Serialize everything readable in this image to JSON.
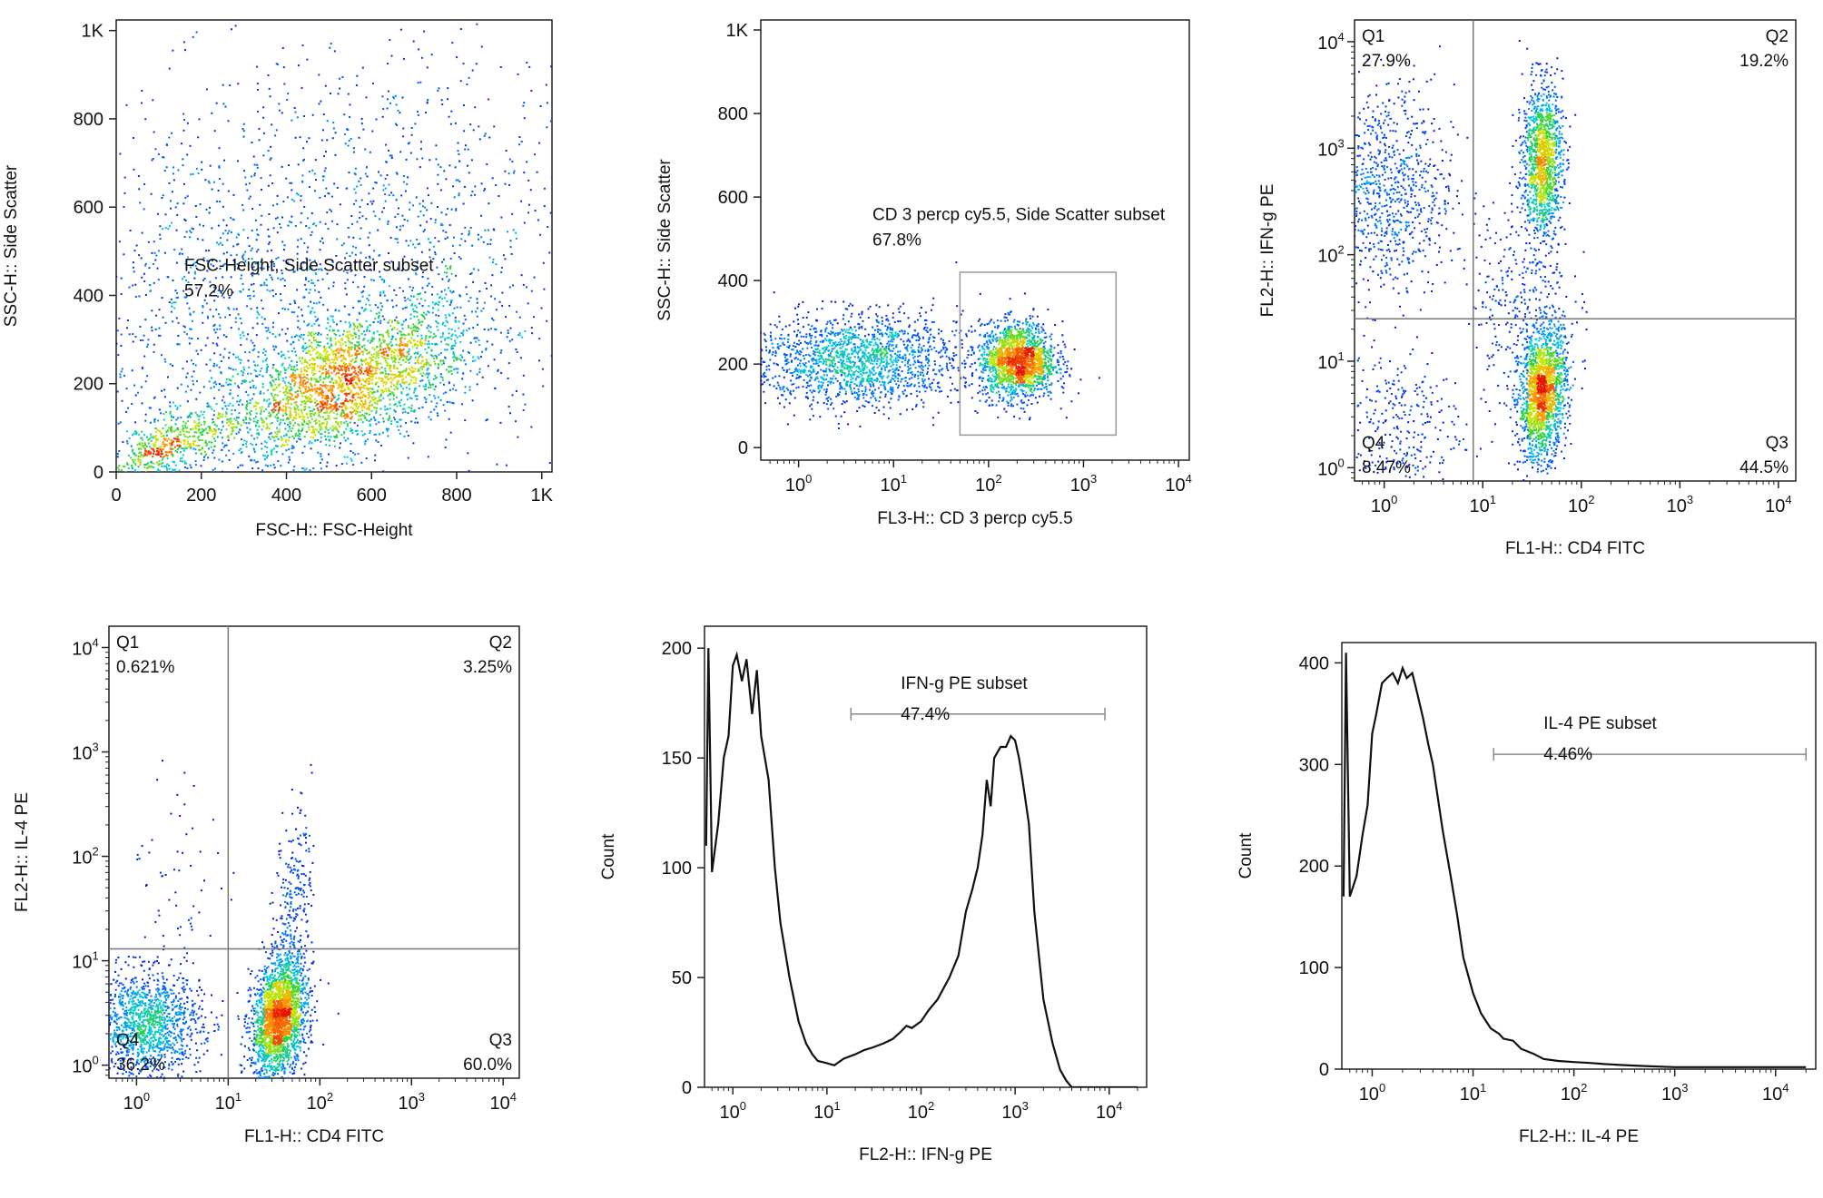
{
  "panels": [
    {
      "id": "fsc-ssc",
      "type": "scatter",
      "x_scale": "linear",
      "y_scale": "linear",
      "xlim": [
        0,
        1024
      ],
      "ylim": [
        0,
        1024
      ],
      "x_ticks": [
        {
          "v": 0,
          "t": "0"
        },
        {
          "v": 200,
          "t": "200"
        },
        {
          "v": 400,
          "t": "400"
        },
        {
          "v": 600,
          "t": "600"
        },
        {
          "v": 800,
          "t": "800"
        },
        {
          "v": 1000,
          "t": "1K"
        }
      ],
      "y_ticks": [
        {
          "v": 0,
          "t": "0"
        },
        {
          "v": 200,
          "t": "200"
        },
        {
          "v": 400,
          "t": "400"
        },
        {
          "v": 600,
          "t": "600"
        },
        {
          "v": 800,
          "t": "800"
        },
        {
          "v": 1000,
          "t": "1K"
        }
      ],
      "xlabel": "FSC-H:: FSC-Height",
      "ylabel": "SSC-H:: Side Scatter",
      "populations": [
        {
          "cx": 530,
          "cy": 200,
          "sx": 150,
          "sy": 90,
          "rho": 0.55,
          "n": 2600
        },
        {
          "cx": 250,
          "cy": 380,
          "sx": 180,
          "sy": 240,
          "rho": 0.1,
          "n": 1100
        },
        {
          "cx": 700,
          "cy": 520,
          "sx": 200,
          "sy": 230,
          "rho": 0.0,
          "n": 900
        },
        {
          "cx": 120,
          "cy": 60,
          "sx": 70,
          "sy": 40,
          "rho": 0.6,
          "n": 500
        }
      ],
      "gate_label": {
        "name": "FSC-Height, Side Scatter subset",
        "value": "57.2%",
        "x": 160,
        "y": 455
      }
    },
    {
      "id": "cd3-ssc",
      "type": "scatter",
      "x_scale": "log",
      "y_scale": "linear",
      "xlim": [
        0.4,
        13000
      ],
      "ylim": [
        -30,
        1024
      ],
      "x_ticks": [
        {
          "v": 1,
          "e": "0"
        },
        {
          "v": 10,
          "e": "1"
        },
        {
          "v": 100,
          "e": "2"
        },
        {
          "v": 1000,
          "e": "3"
        },
        {
          "v": 10000,
          "e": "4"
        }
      ],
      "y_ticks": [
        {
          "v": 0,
          "t": "0"
        },
        {
          "v": 200,
          "t": "200"
        },
        {
          "v": 400,
          "t": "400"
        },
        {
          "v": 600,
          "t": "600"
        },
        {
          "v": 800,
          "t": "800"
        },
        {
          "v": 1000,
          "t": "1K"
        }
      ],
      "xlabel": "FL3-H:: CD 3 percp cy5.5",
      "ylabel": "SSC-H:: Side Scatter",
      "populations": [
        {
          "lcx": 0.6,
          "cy": 210,
          "lsx": 0.55,
          "sy": 55,
          "rho": 0,
          "n": 1700
        },
        {
          "lcx": 2.3,
          "cy": 210,
          "lsx": 0.2,
          "sy": 45,
          "rho": 0,
          "n": 1800
        }
      ],
      "gate_box": {
        "x0": 50,
        "x1": 2200,
        "y0": 30,
        "y1": 420
      },
      "gate_label": {
        "name": "CD 3 percp cy5.5, Side Scatter subset",
        "value": "67.8%",
        "x": 6,
        "y": 545
      }
    },
    {
      "id": "cd4-ifng",
      "type": "quadrant",
      "x_scale": "log",
      "y_scale": "log",
      "xlim": [
        0.5,
        15000
      ],
      "ylim": [
        0.75,
        16000
      ],
      "x_ticks": [
        {
          "v": 1,
          "e": "0"
        },
        {
          "v": 10,
          "e": "1"
        },
        {
          "v": 100,
          "e": "2"
        },
        {
          "v": 1000,
          "e": "3"
        },
        {
          "v": 10000,
          "e": "4"
        }
      ],
      "y_ticks": [
        {
          "v": 1,
          "e": "0"
        },
        {
          "v": 10,
          "e": "1"
        },
        {
          "v": 100,
          "e": "2"
        },
        {
          "v": 1000,
          "e": "3"
        },
        {
          "v": 10000,
          "e": "4"
        }
      ],
      "xlabel": "FL1-H:: CD4 FITC",
      "ylabel": "FL2-H:: IFN-g PE",
      "divider": {
        "x": 8,
        "y": 25
      },
      "quadrants": [
        {
          "name": "Q1",
          "value": "27.9%",
          "pos": "top-left"
        },
        {
          "name": "Q2",
          "value": "19.2%",
          "pos": "top-right"
        },
        {
          "name": "Q3",
          "value": "44.5%",
          "pos": "bottom-right"
        },
        {
          "name": "Q4",
          "value": "8.47%",
          "pos": "bottom-left"
        }
      ],
      "populations": [
        {
          "lcx": 1.6,
          "lcy": 0.7,
          "lsx": 0.12,
          "lsy": 0.3,
          "rho": 0.2,
          "n": 1700
        },
        {
          "lcx": 1.6,
          "lcy": 2.9,
          "lsx": 0.1,
          "lsy": 0.35,
          "rho": 0,
          "n": 1300
        },
        {
          "lcx": 0.0,
          "lcy": 2.6,
          "lsx": 0.35,
          "lsy": 0.5,
          "rho": 0,
          "n": 900
        },
        {
          "lcx": 0.1,
          "lcy": 0.4,
          "lsx": 0.35,
          "lsy": 0.35,
          "rho": 0,
          "n": 300
        },
        {
          "lcx": 1.4,
          "lcy": 1.6,
          "lsx": 0.25,
          "lsy": 0.5,
          "rho": 0,
          "n": 350
        }
      ]
    },
    {
      "id": "cd4-il4",
      "type": "quadrant",
      "x_scale": "log",
      "y_scale": "log",
      "xlim": [
        0.5,
        15000
      ],
      "ylim": [
        0.75,
        16000
      ],
      "x_ticks": [
        {
          "v": 1,
          "e": "0"
        },
        {
          "v": 10,
          "e": "1"
        },
        {
          "v": 100,
          "e": "2"
        },
        {
          "v": 1000,
          "e": "3"
        },
        {
          "v": 10000,
          "e": "4"
        }
      ],
      "y_ticks": [
        {
          "v": 1,
          "e": "0"
        },
        {
          "v": 10,
          "e": "1"
        },
        {
          "v": 100,
          "e": "2"
        },
        {
          "v": 1000,
          "e": "3"
        },
        {
          "v": 10000,
          "e": "4"
        }
      ],
      "xlabel": "FL1-H:: CD4 FITC",
      "ylabel": "FL2-H:: IL-4 PE",
      "divider": {
        "x": 10,
        "y": 13
      },
      "quadrants": [
        {
          "name": "Q1",
          "value": "0.621%",
          "pos": "top-left"
        },
        {
          "name": "Q2",
          "value": "3.25%",
          "pos": "top-right"
        },
        {
          "name": "Q3",
          "value": "60.0%",
          "pos": "bottom-right"
        },
        {
          "name": "Q4",
          "value": "36.2%",
          "pos": "bottom-left"
        }
      ],
      "populations": [
        {
          "lcx": 1.55,
          "lcy": 0.45,
          "lsx": 0.15,
          "lsy": 0.28,
          "rho": 0.25,
          "n": 2200
        },
        {
          "lcx": 0.1,
          "lcy": 0.4,
          "lsx": 0.3,
          "lsy": 0.25,
          "rho": 0,
          "n": 1300
        },
        {
          "lcx": 1.7,
          "lcy": 1.6,
          "lsx": 0.1,
          "lsy": 0.45,
          "rho": 0.3,
          "n": 250
        },
        {
          "lcx": 0.5,
          "lcy": 1.8,
          "lsx": 0.3,
          "lsy": 0.5,
          "rho": 0,
          "n": 60
        }
      ]
    },
    {
      "id": "ifng-hist",
      "type": "line",
      "x_scale": "log",
      "y_scale": "linear",
      "xlim": [
        0.5,
        25000
      ],
      "ylim": [
        0,
        210
      ],
      "x_ticks": [
        {
          "v": 1,
          "e": "0"
        },
        {
          "v": 10,
          "e": "1"
        },
        {
          "v": 100,
          "e": "2"
        },
        {
          "v": 1000,
          "e": "3"
        },
        {
          "v": 10000,
          "e": "4"
        }
      ],
      "y_ticks": [
        {
          "v": 0,
          "t": "0"
        },
        {
          "v": 50,
          "t": "50"
        },
        {
          "v": 100,
          "t": "100"
        },
        {
          "v": 150,
          "t": "150"
        },
        {
          "v": 200,
          "t": "200"
        }
      ],
      "xlabel": "FL2-H:: IFN-g PE",
      "ylabel": "Count",
      "x": [
        0.52,
        0.55,
        0.6,
        0.7,
        0.8,
        0.9,
        1.0,
        1.1,
        1.25,
        1.4,
        1.6,
        1.8,
        2.0,
        2.4,
        2.8,
        3.2,
        4,
        5,
        6,
        7,
        8,
        10,
        12,
        15,
        20,
        25,
        30,
        40,
        50,
        60,
        70,
        80,
        100,
        120,
        150,
        200,
        250,
        300,
        350,
        400,
        450,
        500,
        550,
        600,
        700,
        800,
        900,
        1000,
        1100,
        1200,
        1400,
        1600,
        2000,
        2500,
        3000,
        3500,
        4000,
        5000,
        6000,
        8000,
        10000,
        15000,
        20000
      ],
      "y": [
        110,
        200,
        98,
        120,
        150,
        160,
        192,
        197,
        185,
        195,
        170,
        190,
        160,
        140,
        100,
        75,
        50,
        30,
        20,
        15,
        12,
        11,
        10,
        13,
        15,
        17,
        18,
        20,
        22,
        25,
        28,
        27,
        30,
        35,
        40,
        50,
        60,
        80,
        90,
        100,
        115,
        140,
        128,
        150,
        155,
        155,
        160,
        158,
        150,
        140,
        120,
        80,
        40,
        20,
        8,
        3,
        0,
        0,
        0,
        0,
        0,
        0,
        0
      ],
      "gate": {
        "x0": 18,
        "x1": 9000,
        "y": 170,
        "name": "IFN-g PE subset",
        "value": "47.4%"
      }
    },
    {
      "id": "il4-hist",
      "type": "line",
      "x_scale": "log",
      "y_scale": "linear",
      "xlim": [
        0.5,
        25000
      ],
      "ylim": [
        0,
        420
      ],
      "x_ticks": [
        {
          "v": 1,
          "e": "0"
        },
        {
          "v": 10,
          "e": "1"
        },
        {
          "v": 100,
          "e": "2"
        },
        {
          "v": 1000,
          "e": "3"
        },
        {
          "v": 10000,
          "e": "4"
        }
      ],
      "y_ticks": [
        {
          "v": 0,
          "t": "0"
        },
        {
          "v": 100,
          "t": "100"
        },
        {
          "v": 200,
          "t": "200"
        },
        {
          "v": 300,
          "t": "300"
        },
        {
          "v": 400,
          "t": "400"
        }
      ],
      "xlabel": "FL2-H:: IL-4 PE",
      "ylabel": "Count",
      "x": [
        0.52,
        0.55,
        0.6,
        0.7,
        0.8,
        0.9,
        1.0,
        1.1,
        1.25,
        1.4,
        1.6,
        1.8,
        2.0,
        2.2,
        2.5,
        2.8,
        3.2,
        3.6,
        4,
        5,
        6,
        7,
        8,
        10,
        12,
        15,
        18,
        20,
        25,
        30,
        40,
        50,
        70,
        100,
        150,
        200,
        300,
        500,
        1000,
        2000,
        5000,
        10000,
        20000
      ],
      "y": [
        170,
        410,
        170,
        190,
        230,
        260,
        330,
        350,
        380,
        385,
        390,
        380,
        395,
        385,
        390,
        370,
        345,
        320,
        300,
        235,
        190,
        150,
        110,
        75,
        55,
        40,
        35,
        30,
        28,
        20,
        15,
        10,
        8,
        7,
        6,
        5,
        4,
        3,
        2,
        2,
        2,
        2,
        2
      ],
      "gate": {
        "x0": 16,
        "x1": 20000,
        "y": 310,
        "name": "IL-4 PE subset",
        "value": "4.46%"
      }
    }
  ]
}
